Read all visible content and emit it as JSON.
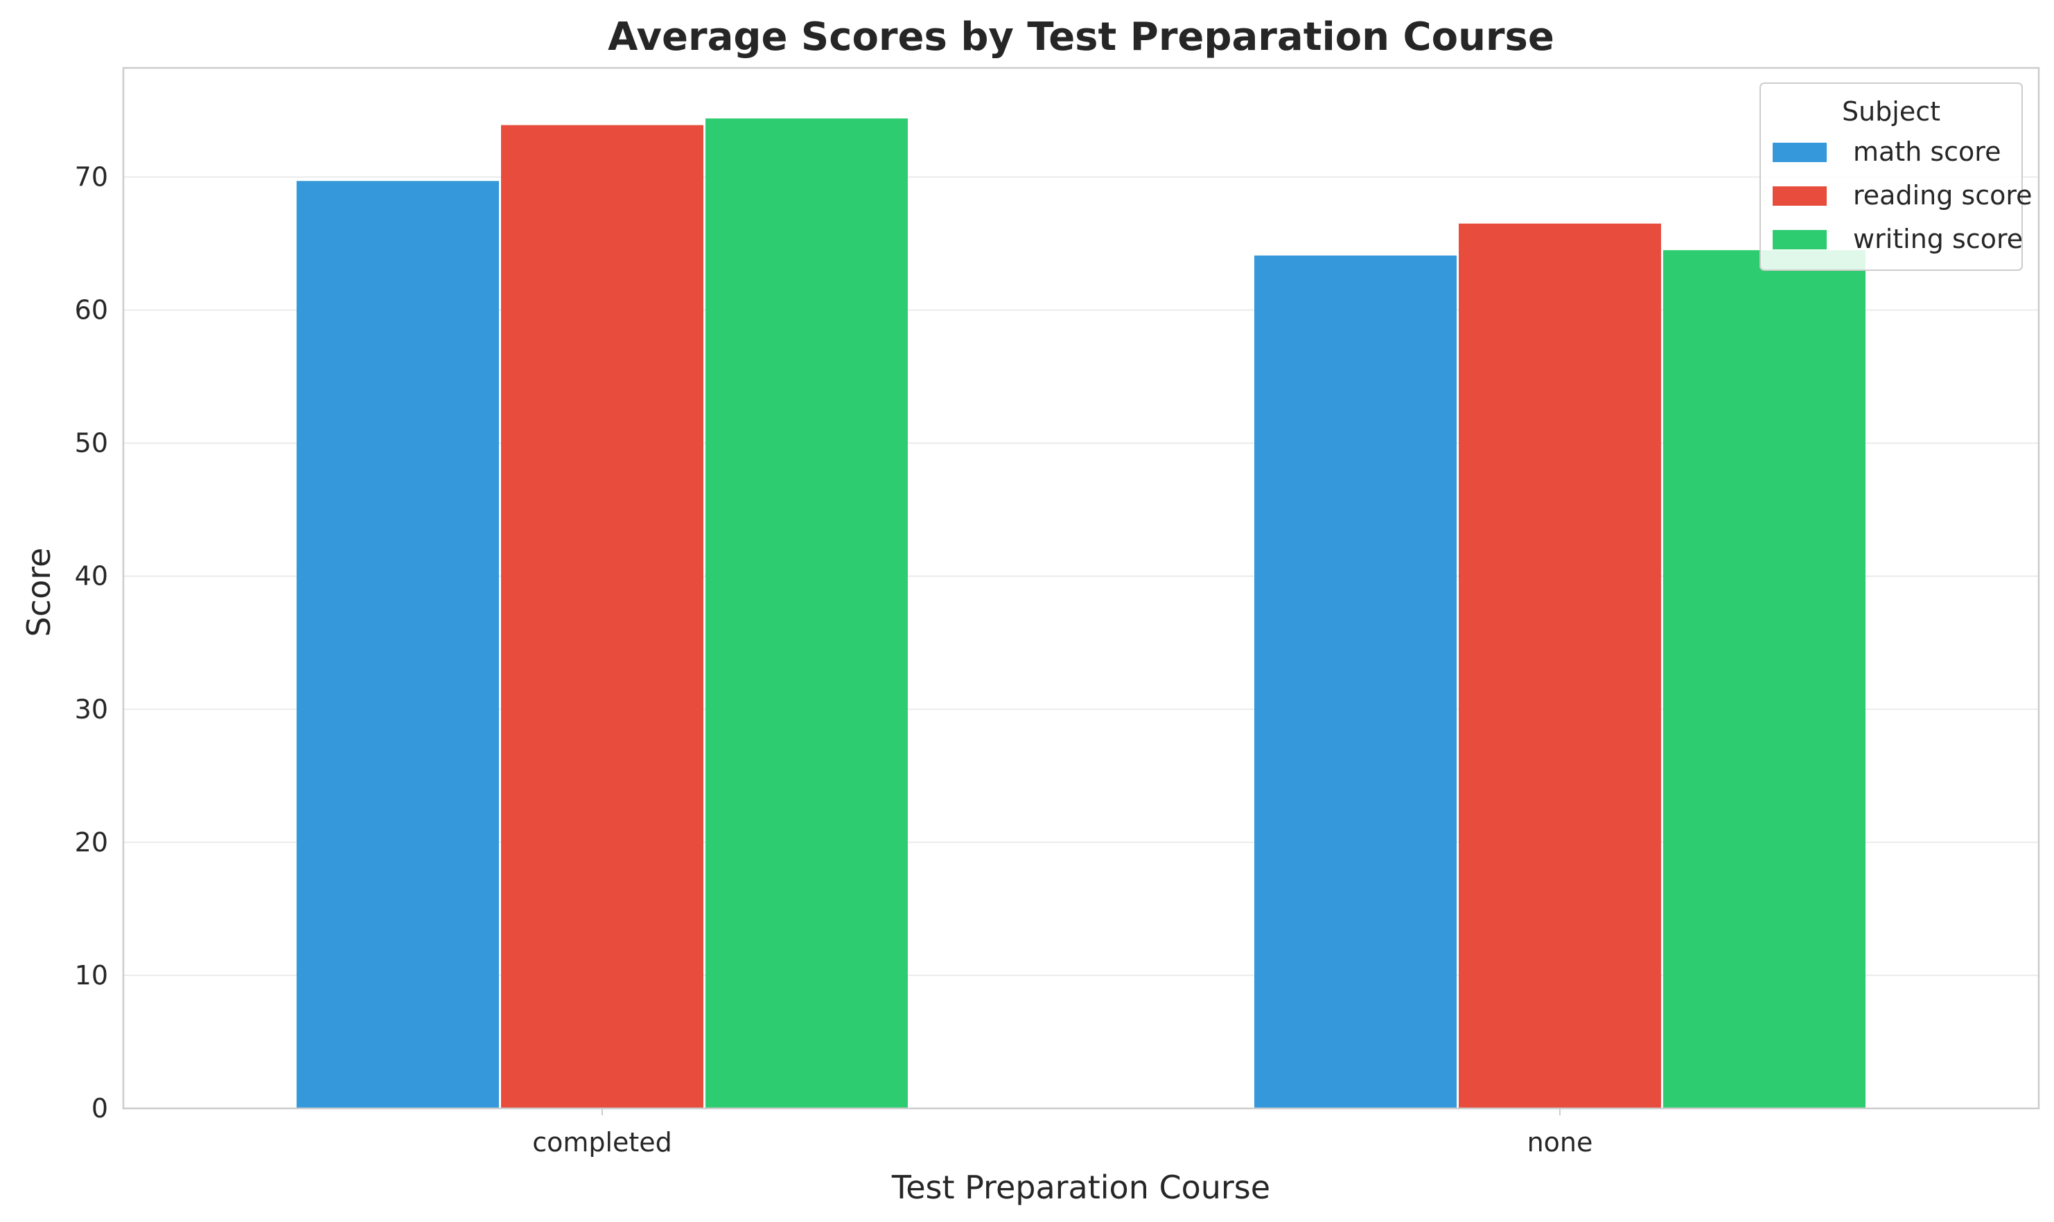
{
  "chart_data": {
    "type": "bar",
    "title": "Average Scores by Test Preparation Course",
    "xlabel": "Test Preparation Course",
    "ylabel": "Score",
    "categories": [
      "completed",
      "none"
    ],
    "series": [
      {
        "name": "math score",
        "color": "#3498db",
        "values": [
          69.7,
          64.1
        ]
      },
      {
        "name": "reading score",
        "color": "#e74c3c",
        "values": [
          73.9,
          66.5
        ]
      },
      {
        "name": "writing score",
        "color": "#2ecc71",
        "values": [
          74.4,
          64.5
        ]
      }
    ],
    "ylim": [
      0,
      78.2
    ],
    "yticks": [
      0,
      10,
      20,
      30,
      40,
      50,
      60,
      70
    ],
    "grid": true,
    "legend": {
      "title": "Subject",
      "placement": "top-right"
    }
  }
}
